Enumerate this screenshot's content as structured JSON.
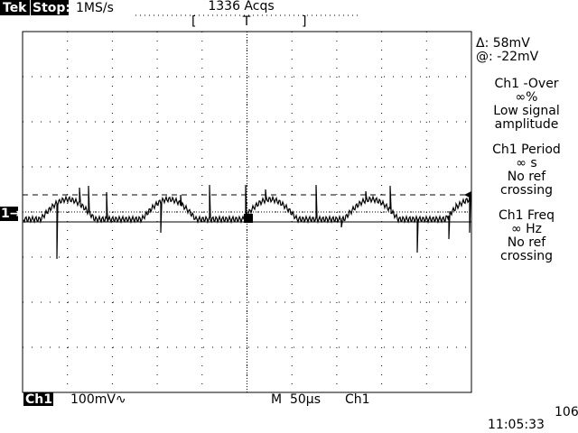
{
  "header": {
    "brand": "Tek",
    "state": "Stop:",
    "sample_rate": "1MS/s",
    "acquisitions": "1336 Acqs",
    "bracket_left": "[",
    "trigger_marker": "T",
    "bracket_right": "]"
  },
  "channel_marker": "1→",
  "cursor": {
    "delta": "Δ: 58mV",
    "at": "@: -22mV"
  },
  "measurements": [
    {
      "title": "Ch1 -Over",
      "lines": [
        "∞%",
        "Low signal",
        "amplitude"
      ]
    },
    {
      "title": "Ch1 Period",
      "lines": [
        "∞ s",
        "No ref",
        "crossing"
      ]
    },
    {
      "title": "Ch1 Freq",
      "lines": [
        "∞ Hz",
        "No ref",
        "crossing"
      ]
    }
  ],
  "footer": {
    "channel": "Ch1",
    "scale": "100mV∿",
    "timebase": "M  50µs",
    "trigger_source": "Ch1",
    "trigger_level": "106",
    "time": "11:05:33"
  }
}
